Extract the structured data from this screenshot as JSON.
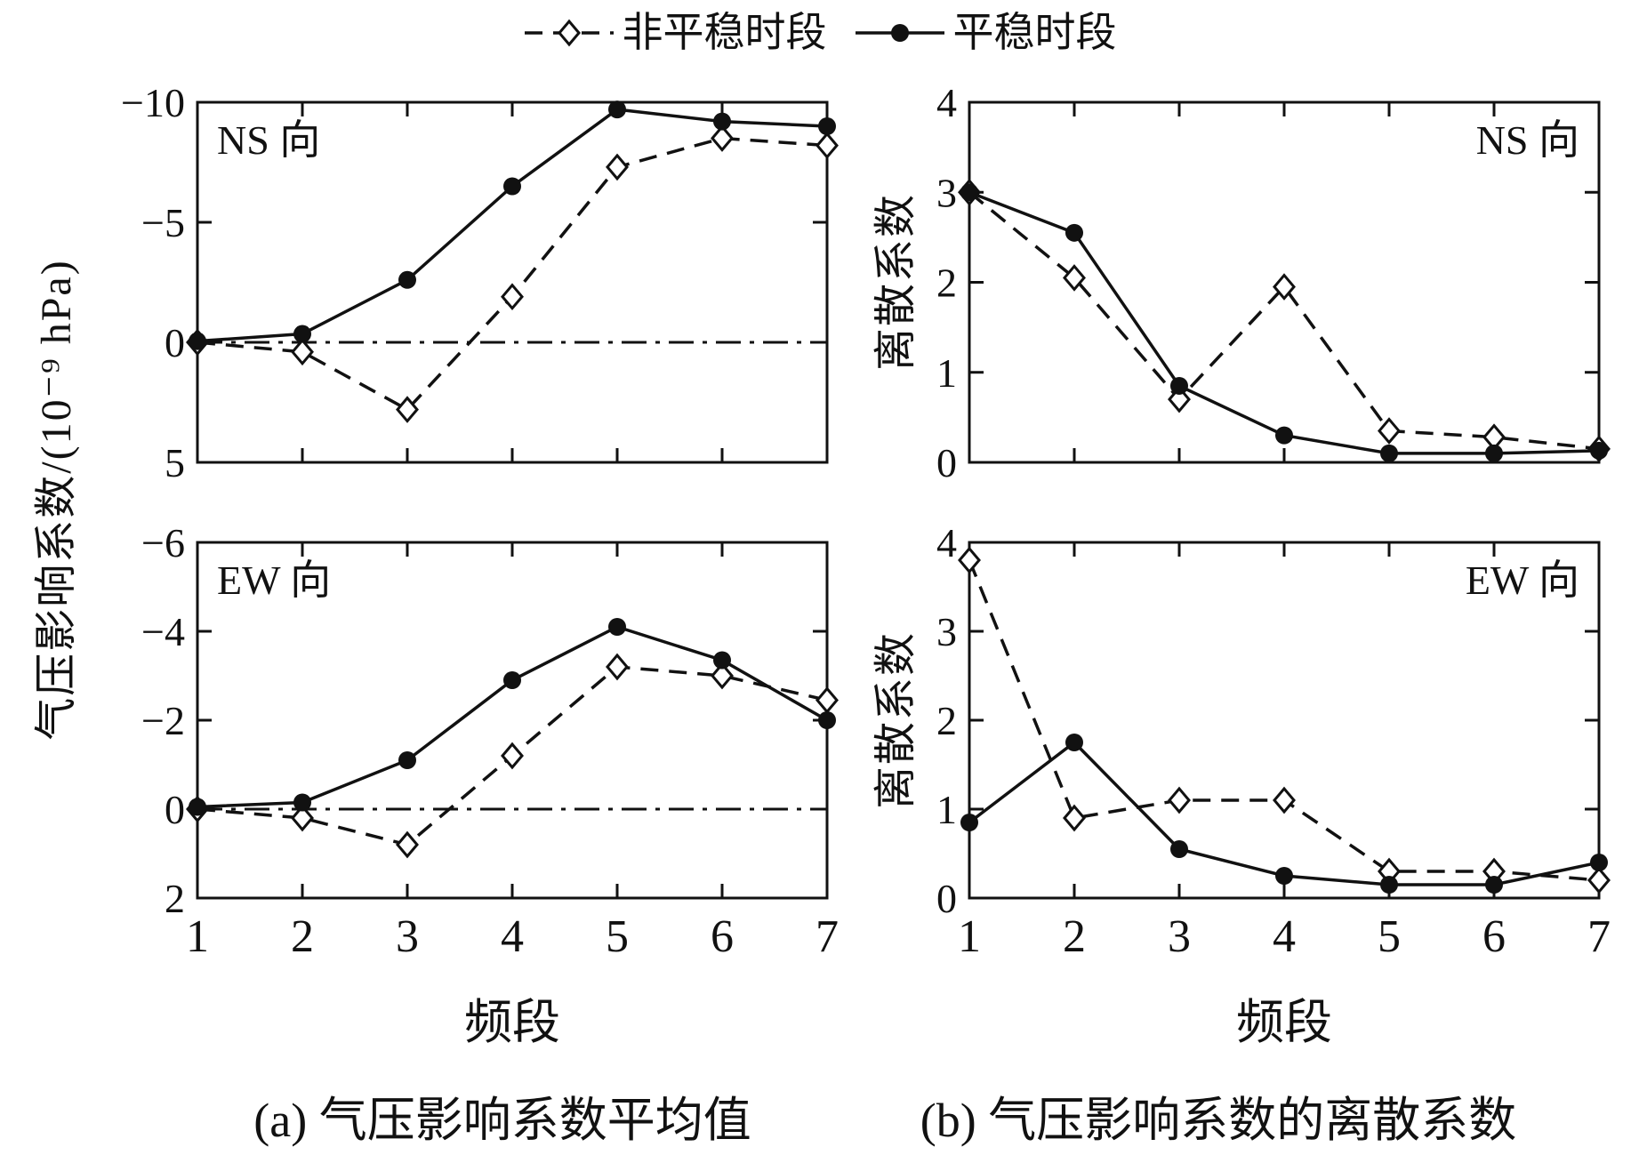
{
  "colors": {
    "ink": "#111111",
    "background": "#ffffff"
  },
  "legend": {
    "items": [
      {
        "label": "非平稳时段",
        "marker": "open-diamond",
        "line_style": "dashed"
      },
      {
        "label": "平稳时段",
        "marker": "filled-circle",
        "line_style": "solid"
      }
    ]
  },
  "axes": {
    "xlabel": "频段"
  },
  "captions": {
    "a": "(a) 气压影响系数平均值",
    "b": "(b) 气压影响系数的离散系数"
  },
  "chart_data": [
    {
      "id": "ns_mean",
      "type": "line",
      "panel_label": "NS 向",
      "xlabel": "频段",
      "ylabel": "气压影响系数/(10⁻⁹ hPa)",
      "x": [
        1,
        2,
        3,
        4,
        5,
        6,
        7
      ],
      "xlim": [
        1,
        7
      ],
      "xticks": [
        1,
        2,
        3,
        4,
        5,
        6,
        7
      ],
      "ylim_top_to_bottom": [
        -10,
        5
      ],
      "yticks": [
        -10,
        -5,
        0,
        5
      ],
      "y_axis_inverted": true,
      "grid": false,
      "zero_line": true,
      "series": [
        {
          "name": "非平稳时段",
          "marker": "open-diamond",
          "line_style": "dashed",
          "values": [
            0,
            0.4,
            2.8,
            -1.9,
            -7.3,
            -8.5,
            -8.2
          ]
        },
        {
          "name": "平稳时段",
          "marker": "filled-circle",
          "line_style": "solid",
          "values": [
            -0.05,
            -0.35,
            -2.6,
            -6.5,
            -9.7,
            -9.2,
            -9.0
          ]
        }
      ]
    },
    {
      "id": "ns_cv",
      "type": "line",
      "panel_label": "NS 向",
      "xlabel": "频段",
      "ylabel": "离散系数",
      "x": [
        1,
        2,
        3,
        4,
        5,
        6,
        7
      ],
      "xlim": [
        1,
        7
      ],
      "xticks": [
        1,
        2,
        3,
        4,
        5,
        6,
        7
      ],
      "ylim_top_to_bottom": [
        4,
        0
      ],
      "yticks": [
        0,
        1,
        2,
        3,
        4
      ],
      "y_axis_inverted": false,
      "grid": false,
      "zero_line": false,
      "series": [
        {
          "name": "非平稳时段",
          "marker": "open-diamond",
          "line_style": "dashed",
          "values": [
            3.0,
            2.05,
            0.7,
            1.95,
            0.35,
            0.28,
            0.15
          ]
        },
        {
          "name": "平稳时段",
          "marker": "filled-circle",
          "line_style": "solid",
          "values": [
            3.0,
            2.55,
            0.85,
            0.3,
            0.1,
            0.1,
            0.13
          ]
        }
      ]
    },
    {
      "id": "ew_mean",
      "type": "line",
      "panel_label": "EW 向",
      "xlabel": "频段",
      "ylabel": "气压影响系数/(10⁻⁹ hPa)",
      "x": [
        1,
        2,
        3,
        4,
        5,
        6,
        7
      ],
      "xlim": [
        1,
        7
      ],
      "xticks": [
        1,
        2,
        3,
        4,
        5,
        6,
        7
      ],
      "ylim_top_to_bottom": [
        -6,
        2
      ],
      "yticks": [
        -6,
        -4,
        -2,
        0,
        2
      ],
      "y_axis_inverted": true,
      "grid": false,
      "zero_line": true,
      "series": [
        {
          "name": "非平稳时段",
          "marker": "open-diamond",
          "line_style": "dashed",
          "values": [
            0,
            0.2,
            0.8,
            -1.2,
            -3.2,
            -3.0,
            -2.45
          ]
        },
        {
          "name": "平稳时段",
          "marker": "filled-circle",
          "line_style": "solid",
          "values": [
            -0.05,
            -0.15,
            -1.1,
            -2.9,
            -4.1,
            -3.35,
            -2.0
          ]
        }
      ]
    },
    {
      "id": "ew_cv",
      "type": "line",
      "panel_label": "EW 向",
      "xlabel": "频段",
      "ylabel": "离散系数",
      "x": [
        1,
        2,
        3,
        4,
        5,
        6,
        7
      ],
      "xlim": [
        1,
        7
      ],
      "xticks": [
        1,
        2,
        3,
        4,
        5,
        6,
        7
      ],
      "ylim_top_to_bottom": [
        4,
        0
      ],
      "yticks": [
        0,
        1,
        2,
        3,
        4
      ],
      "y_axis_inverted": false,
      "grid": false,
      "zero_line": false,
      "series": [
        {
          "name": "非平稳时段",
          "marker": "open-diamond",
          "line_style": "dashed",
          "values": [
            3.8,
            0.9,
            1.1,
            1.1,
            0.3,
            0.3,
            0.2
          ]
        },
        {
          "name": "平稳时段",
          "marker": "filled-circle",
          "line_style": "solid",
          "values": [
            0.85,
            1.75,
            0.55,
            0.25,
            0.15,
            0.15,
            0.4
          ]
        }
      ]
    }
  ]
}
